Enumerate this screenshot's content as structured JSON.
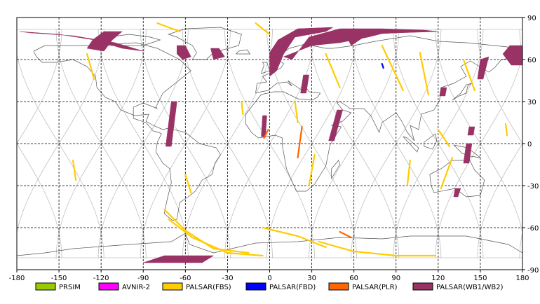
{
  "map": {
    "x_ticks": [
      "-180",
      "-150",
      "-120",
      "-90",
      "-60",
      "-30",
      "0",
      "30",
      "60",
      "90",
      "120",
      "150",
      "180"
    ],
    "y_ticks": [
      "90",
      "60",
      "30",
      "0",
      "-30",
      "-60",
      "-90"
    ],
    "colors": {
      "frame": "#000000",
      "grid": "#000000",
      "coast": "#555555",
      "orbit": "#c0c0c0"
    }
  },
  "legend": [
    {
      "label": "PRSIM",
      "color": "#99cc00"
    },
    {
      "label": "AVNIR-2",
      "color": "#ff00ff"
    },
    {
      "label": "PALSAR(FBS)",
      "color": "#ffcc00"
    },
    {
      "label": "PALSAR(FBD)",
      "color": "#0000ff"
    },
    {
      "label": "PALSAR(PLR)",
      "color": "#ff6600"
    },
    {
      "label": "PALSAR(WB1/WB2)",
      "color": "#993366"
    }
  ],
  "swaths": [
    {
      "mode": "PALSAR(WB1/WB2)",
      "path": [
        [
          -178,
          80
        ],
        [
          -150,
          78
        ],
        [
          -125,
          74
        ],
        [
          -105,
          68
        ],
        [
          -90,
          66
        ],
        [
          -110,
          72
        ],
        [
          -140,
          77
        ],
        [
          -170,
          79
        ]
      ]
    },
    {
      "mode": "PALSAR(WB1/WB2)",
      "path": [
        [
          -130,
          68
        ],
        [
          -118,
          66
        ],
        [
          -112,
          74
        ],
        [
          -105,
          80
        ],
        [
          -118,
          80
        ],
        [
          -126,
          74
        ]
      ]
    },
    {
      "mode": "PALSAR(WB1/WB2)",
      "path": [
        [
          -66,
          70
        ],
        [
          -60,
          70
        ],
        [
          -56,
          62
        ],
        [
          -62,
          60
        ],
        [
          -66,
          64
        ]
      ]
    },
    {
      "mode": "PALSAR(WB1/WB2)",
      "path": [
        [
          -42,
          68
        ],
        [
          -36,
          68
        ],
        [
          -32,
          62
        ],
        [
          -40,
          60
        ]
      ]
    },
    {
      "mode": "PALSAR(WB1/WB2)",
      "path": [
        [
          0,
          65
        ],
        [
          6,
          74
        ],
        [
          20,
          82
        ],
        [
          45,
          83
        ],
        [
          40,
          80
        ],
        [
          18,
          76
        ],
        [
          10,
          64
        ],
        [
          5,
          52
        ],
        [
          0,
          48
        ]
      ]
    },
    {
      "mode": "PALSAR(WB1/WB2)",
      "path": [
        [
          10,
          62
        ],
        [
          16,
          60
        ],
        [
          28,
          76
        ],
        [
          50,
          82
        ],
        [
          90,
          81
        ],
        [
          70,
          76
        ],
        [
          50,
          72
        ],
        [
          30,
          70
        ],
        [
          20,
          66
        ]
      ]
    },
    {
      "mode": "PALSAR(WB1/WB2)",
      "path": [
        [
          52,
          82
        ],
        [
          80,
          82
        ],
        [
          110,
          81
        ],
        [
          120,
          80
        ],
        [
          90,
          79
        ],
        [
          70,
          78
        ],
        [
          58,
          70
        ],
        [
          55,
          76
        ]
      ]
    },
    {
      "mode": "PALSAR(WB1/WB2)",
      "path": [
        [
          -70,
          30
        ],
        [
          -66,
          30
        ],
        [
          -70,
          -2
        ],
        [
          -74,
          -2
        ]
      ]
    },
    {
      "mode": "PALSAR(WB1/WB2)",
      "path": [
        [
          -5,
          20
        ],
        [
          -2,
          20
        ],
        [
          -3,
          5
        ],
        [
          -6,
          5
        ]
      ]
    },
    {
      "mode": "PALSAR(WB1/WB2)",
      "path": [
        [
          24,
          49
        ],
        [
          28,
          49
        ],
        [
          26,
          36
        ],
        [
          22,
          36
        ]
      ]
    },
    {
      "mode": "PALSAR(WB1/WB2)",
      "path": [
        [
          48,
          24
        ],
        [
          52,
          24
        ],
        [
          46,
          2
        ],
        [
          42,
          2
        ]
      ]
    },
    {
      "mode": "PALSAR(WB1/WB2)",
      "path": [
        [
          -75,
          -80
        ],
        [
          -40,
          -80
        ],
        [
          -48,
          -85
        ],
        [
          -90,
          -85
        ]
      ]
    },
    {
      "mode": "PALSAR(WB1/WB2)",
      "path": [
        [
          150,
          60
        ],
        [
          156,
          62
        ],
        [
          152,
          46
        ],
        [
          148,
          46
        ]
      ]
    },
    {
      "mode": "PALSAR(WB1/WB2)",
      "path": [
        [
          171,
          70
        ],
        [
          180,
          70
        ],
        [
          180,
          56
        ],
        [
          172,
          56
        ],
        [
          166,
          64
        ]
      ]
    },
    {
      "mode": "PALSAR(WB1/WB2)",
      "path": [
        [
          122,
          40
        ],
        [
          126,
          40
        ],
        [
          125,
          34
        ],
        [
          121,
          34
        ]
      ]
    },
    {
      "mode": "PALSAR(WB1/WB2)",
      "path": [
        [
          142,
          12
        ],
        [
          146,
          12
        ],
        [
          145,
          6
        ],
        [
          141,
          6
        ]
      ]
    },
    {
      "mode": "PALSAR(WB1/WB2)",
      "path": [
        [
          140,
          0
        ],
        [
          144,
          0
        ],
        [
          142,
          -14
        ],
        [
          138,
          -14
        ]
      ]
    },
    {
      "mode": "PALSAR(WB1/WB2)",
      "path": [
        [
          132,
          -32
        ],
        [
          136,
          -32
        ],
        [
          134,
          -38
        ],
        [
          131,
          -38
        ]
      ]
    },
    {
      "mode": "PALSAR(FBS)",
      "path": [
        [
          -75,
          -47
        ],
        [
          -60,
          -62
        ],
        [
          -40,
          -75
        ],
        [
          -15,
          -78
        ]
      ]
    },
    {
      "mode": "PALSAR(FBS)",
      "path": [
        [
          -72,
          -54
        ],
        [
          -55,
          -67
        ],
        [
          -30,
          -78
        ],
        [
          -5,
          -80
        ]
      ]
    },
    {
      "mode": "PALSAR(FBS)",
      "path": [
        [
          35,
          -70
        ],
        [
          60,
          -77
        ],
        [
          90,
          -80
        ],
        [
          118,
          -80
        ]
      ]
    },
    {
      "mode": "PALSAR(FBS)",
      "path": [
        [
          -5,
          -60
        ],
        [
          20,
          -66
        ],
        [
          40,
          -74
        ]
      ]
    },
    {
      "mode": "PALSAR(FBS)",
      "path": [
        [
          -80,
          86
        ],
        [
          -64,
          80
        ]
      ]
    },
    {
      "mode": "PALSAR(FBS)",
      "path": [
        [
          -10,
          86
        ],
        [
          0,
          78
        ]
      ]
    },
    {
      "mode": "PALSAR(FBS)",
      "path": [
        [
          -60,
          -22
        ],
        [
          -56,
          -35
        ]
      ]
    },
    {
      "mode": "PALSAR(FBS)",
      "path": [
        [
          32,
          -8
        ],
        [
          28,
          -30
        ]
      ]
    },
    {
      "mode": "PALSAR(FBS)",
      "path": [
        [
          100,
          -12
        ],
        [
          98,
          -30
        ]
      ]
    },
    {
      "mode": "PALSAR(FBS)",
      "path": [
        [
          120,
          10
        ],
        [
          128,
          -2
        ]
      ]
    },
    {
      "mode": "PALSAR(FBS)",
      "path": [
        [
          130,
          -10
        ],
        [
          122,
          -32
        ]
      ]
    },
    {
      "mode": "PALSAR(FBS)",
      "path": [
        [
          107,
          65
        ],
        [
          113,
          35
        ]
      ]
    },
    {
      "mode": "PALSAR(FBS)",
      "path": [
        [
          80,
          70
        ],
        [
          95,
          38
        ]
      ]
    },
    {
      "mode": "PALSAR(FBS)",
      "path": [
        [
          40,
          64
        ],
        [
          50,
          40
        ]
      ]
    },
    {
      "mode": "PALSAR(FBS)",
      "path": [
        [
          138,
          60
        ],
        [
          146,
          38
        ]
      ]
    },
    {
      "mode": "PALSAR(FBS)",
      "path": [
        [
          168,
          14
        ],
        [
          169,
          6
        ]
      ]
    },
    {
      "mode": "PALSAR(FBS)",
      "path": [
        [
          -130,
          64
        ],
        [
          -125,
          46
        ]
      ]
    },
    {
      "mode": "PALSAR(FBS)",
      "path": [
        [
          -140,
          -12
        ],
        [
          -138,
          -26
        ]
      ]
    },
    {
      "mode": "PALSAR(FBS)",
      "path": [
        [
          -20,
          30
        ],
        [
          -19,
          21
        ]
      ]
    },
    {
      "mode": "PALSAR(FBS)",
      "path": [
        [
          18,
          30
        ],
        [
          20,
          15
        ]
      ]
    },
    {
      "mode": "PALSAR(FBD)",
      "path": [
        [
          80,
          57
        ],
        [
          81,
          54
        ]
      ]
    },
    {
      "mode": "PALSAR(PLR)",
      "path": [
        [
          23,
          12
        ],
        [
          20,
          -10
        ]
      ]
    },
    {
      "mode": "PALSAR(PLR)",
      "path": [
        [
          -1,
          10
        ],
        [
          -4,
          4
        ]
      ]
    },
    {
      "mode": "PALSAR(PLR)",
      "path": [
        [
          50,
          -63
        ],
        [
          58,
          -67
        ]
      ]
    }
  ]
}
